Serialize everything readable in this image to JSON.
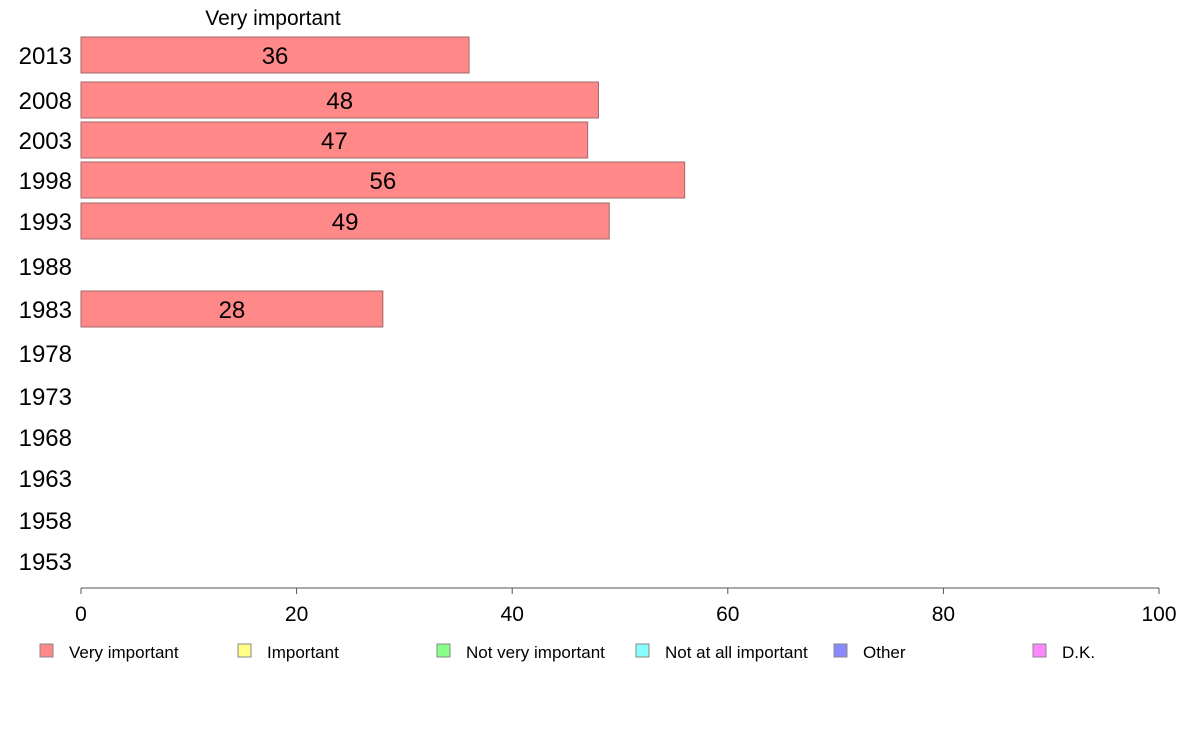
{
  "chart_data": {
    "type": "bar",
    "orientation": "horizontal",
    "column_heading": "Very important",
    "categories": [
      "2013",
      "2008",
      "2003",
      "1998",
      "1993",
      "1988",
      "1983",
      "1978",
      "1973",
      "1968",
      "1963",
      "1958",
      "1953"
    ],
    "series": [
      {
        "name": "Very important",
        "color": "#ff8888",
        "values": [
          36,
          48,
          47,
          56,
          49,
          null,
          28,
          null,
          null,
          null,
          null,
          null,
          null
        ]
      }
    ],
    "data_labels": [
      "36",
      "48",
      "47",
      "56",
      "49",
      "",
      "28",
      "",
      "",
      "",
      "",
      "",
      ""
    ],
    "xlim": [
      0,
      100
    ],
    "xticks": [
      0,
      20,
      40,
      60,
      80,
      100
    ],
    "grid": false,
    "legend": {
      "position": "bottom",
      "items": [
        {
          "label": "Very important",
          "color": "#ff8888"
        },
        {
          "label": "Important",
          "color": "#ffff88"
        },
        {
          "label": "Not very important",
          "color": "#88ff88"
        },
        {
          "label": "Not at all important",
          "color": "#88ffff"
        },
        {
          "label": "Other",
          "color": "#8888ff"
        },
        {
          "label": "D.K.",
          "color": "#ff88ff"
        }
      ]
    }
  }
}
